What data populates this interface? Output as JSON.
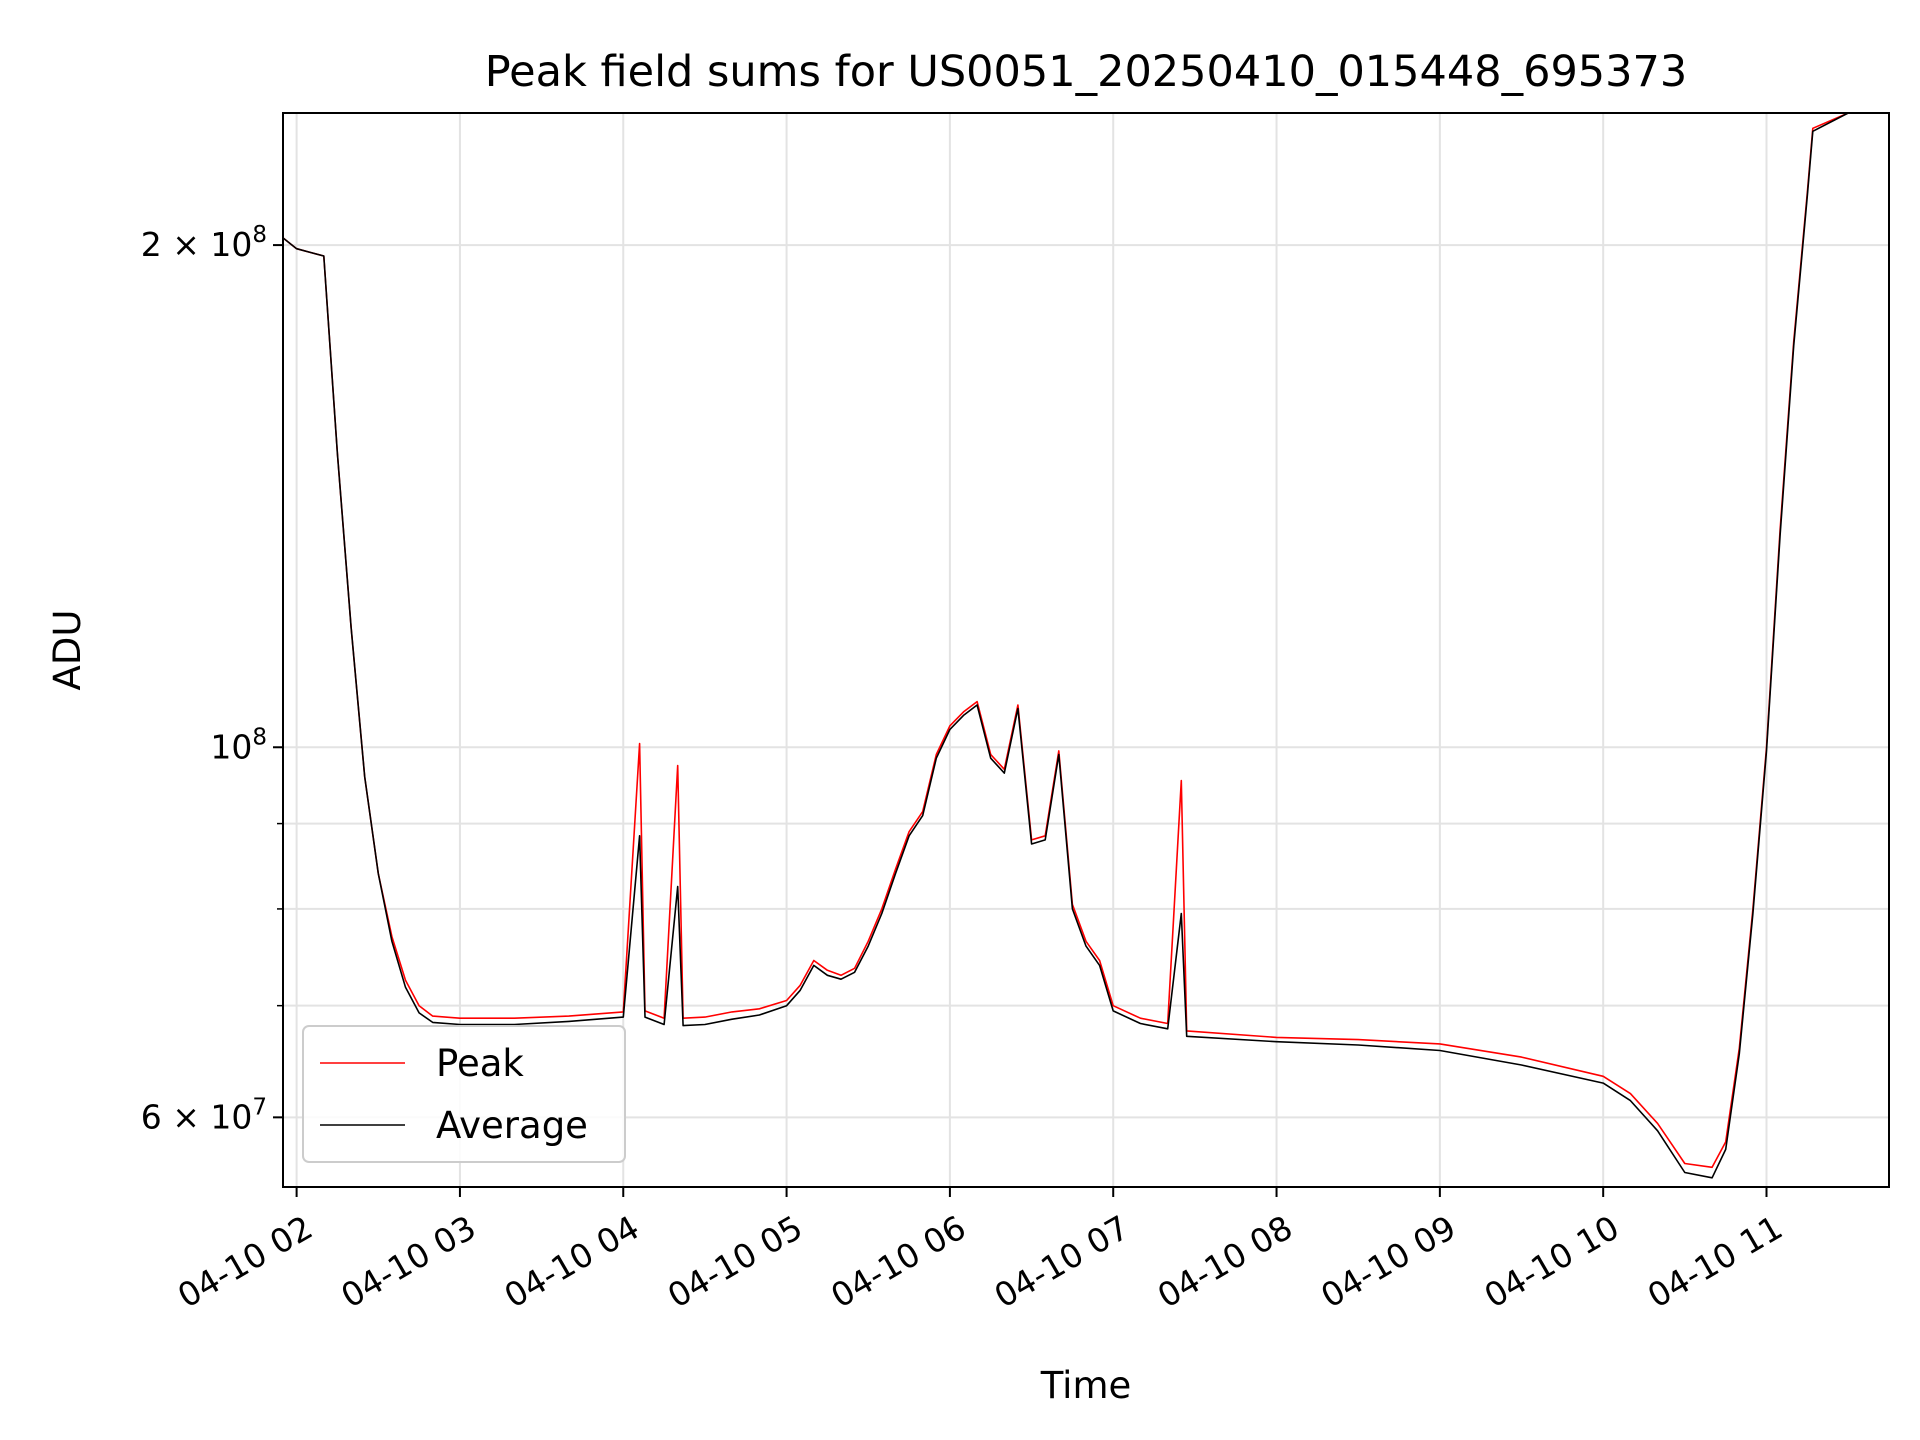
{
  "chart_data": {
    "type": "line",
    "title": "Peak field sums for US0051_20250410_015448_695373",
    "xlabel": "Time",
    "ylabel": "ADU",
    "x_axis": "datetime",
    "y_scale": "log",
    "xlim": [
      "2025-04-10T01:55:00",
      "2025-04-10T11:45:00"
    ],
    "ylim": [
      54500000,
      240000000
    ],
    "x_ticks": [
      {
        "t": "2025-04-10T02:00",
        "label": "04-10 02"
      },
      {
        "t": "2025-04-10T03:00",
        "label": "04-10 03"
      },
      {
        "t": "2025-04-10T04:00",
        "label": "04-10 04"
      },
      {
        "t": "2025-04-10T05:00",
        "label": "04-10 05"
      },
      {
        "t": "2025-04-10T06:00",
        "label": "04-10 06"
      },
      {
        "t": "2025-04-10T07:00",
        "label": "04-10 07"
      },
      {
        "t": "2025-04-10T08:00",
        "label": "04-10 08"
      },
      {
        "t": "2025-04-10T09:00",
        "label": "04-10 09"
      },
      {
        "t": "2025-04-10T10:00",
        "label": "04-10 10"
      },
      {
        "t": "2025-04-10T11:00",
        "label": "04-10 11"
      }
    ],
    "y_major_ticks": [
      {
        "v": 60000000,
        "mantissa": "6",
        "exp": "7"
      },
      {
        "v": 100000000,
        "mantissa": "",
        "exp": "8"
      },
      {
        "v": 200000000,
        "mantissa": "2",
        "exp": "8"
      }
    ],
    "y_minor_ticks": [
      70000000,
      80000000,
      90000000
    ],
    "grid": true,
    "legend_position": "lower-left",
    "series": [
      {
        "name": "Peak",
        "color": "#ff0000",
        "points": [
          [
            "2025-04-10T01:55",
            202000000
          ],
          [
            "2025-04-10T02:00",
            199000000
          ],
          [
            "2025-04-10T02:05",
            198000000
          ],
          [
            "2025-04-10T02:10",
            197000000
          ],
          [
            "2025-04-10T02:15",
            150000000
          ],
          [
            "2025-04-10T02:20",
            118000000
          ],
          [
            "2025-04-10T02:25",
            96000000
          ],
          [
            "2025-04-10T02:30",
            84000000
          ],
          [
            "2025-04-10T02:35",
            77000000
          ],
          [
            "2025-04-10T02:40",
            72500000
          ],
          [
            "2025-04-10T02:45",
            70000000
          ],
          [
            "2025-04-10T02:50",
            69000000
          ],
          [
            "2025-04-10T03:00",
            68800000
          ],
          [
            "2025-04-10T03:20",
            68800000
          ],
          [
            "2025-04-10T03:40",
            69000000
          ],
          [
            "2025-04-10T04:00",
            69400000
          ],
          [
            "2025-04-10T04:06",
            100500000
          ],
          [
            "2025-04-10T04:08",
            69500000
          ],
          [
            "2025-04-10T04:15",
            68800000
          ],
          [
            "2025-04-10T04:20",
            97500000
          ],
          [
            "2025-04-10T04:22",
            68800000
          ],
          [
            "2025-04-10T04:30",
            68900000
          ],
          [
            "2025-04-10T04:40",
            69400000
          ],
          [
            "2025-04-10T04:50",
            69700000
          ],
          [
            "2025-04-10T05:00",
            70500000
          ],
          [
            "2025-04-10T05:05",
            72000000
          ],
          [
            "2025-04-10T05:10",
            74500000
          ],
          [
            "2025-04-10T05:15",
            73500000
          ],
          [
            "2025-04-10T05:20",
            73000000
          ],
          [
            "2025-04-10T05:25",
            73700000
          ],
          [
            "2025-04-10T05:30",
            76500000
          ],
          [
            "2025-04-10T05:35",
            80000000
          ],
          [
            "2025-04-10T05:40",
            84500000
          ],
          [
            "2025-04-10T05:45",
            89000000
          ],
          [
            "2025-04-10T05:50",
            91500000
          ],
          [
            "2025-04-10T05:55",
            99000000
          ],
          [
            "2025-04-10T06:00",
            103000000
          ],
          [
            "2025-04-10T06:05",
            105000000
          ],
          [
            "2025-04-10T06:10",
            106500000
          ],
          [
            "2025-04-10T06:15",
            99000000
          ],
          [
            "2025-04-10T06:20",
            97000000
          ],
          [
            "2025-04-10T06:25",
            106000000
          ],
          [
            "2025-04-10T06:30",
            88000000
          ],
          [
            "2025-04-10T06:35",
            88500000
          ],
          [
            "2025-04-10T06:40",
            99500000
          ],
          [
            "2025-04-10T06:45",
            80500000
          ],
          [
            "2025-04-10T06:50",
            76500000
          ],
          [
            "2025-04-10T06:55",
            74500000
          ],
          [
            "2025-04-10T07:00",
            70000000
          ],
          [
            "2025-04-10T07:10",
            68800000
          ],
          [
            "2025-04-10T07:20",
            68300000
          ],
          [
            "2025-04-10T07:25",
            95500000
          ],
          [
            "2025-04-10T07:27",
            67600000
          ],
          [
            "2025-04-10T08:00",
            67000000
          ],
          [
            "2025-04-10T08:30",
            66800000
          ],
          [
            "2025-04-10T09:00",
            66400000
          ],
          [
            "2025-04-10T09:30",
            65200000
          ],
          [
            "2025-04-10T10:00",
            63500000
          ],
          [
            "2025-04-10T10:10",
            62000000
          ],
          [
            "2025-04-10T10:20",
            59500000
          ],
          [
            "2025-04-10T10:30",
            56300000
          ],
          [
            "2025-04-10T10:40",
            56000000
          ],
          [
            "2025-04-10T10:45",
            58000000
          ],
          [
            "2025-04-10T10:50",
            66000000
          ],
          [
            "2025-04-10T10:55",
            80000000
          ],
          [
            "2025-04-10T11:00",
            100000000
          ],
          [
            "2025-04-10T11:05",
            135000000
          ],
          [
            "2025-04-10T11:10",
            175000000
          ],
          [
            "2025-04-10T11:15",
            215000000
          ],
          [
            "2025-04-10T11:17",
            235000000
          ],
          [
            "2025-04-10T11:30",
            240000000
          ]
        ]
      },
      {
        "name": "Average",
        "color": "#000000",
        "points": [
          [
            "2025-04-10T01:55",
            202000000
          ],
          [
            "2025-04-10T02:00",
            199000000
          ],
          [
            "2025-04-10T02:05",
            198000000
          ],
          [
            "2025-04-10T02:10",
            197000000
          ],
          [
            "2025-04-10T02:15",
            150000000
          ],
          [
            "2025-04-10T02:20",
            118000000
          ],
          [
            "2025-04-10T02:25",
            96000000
          ],
          [
            "2025-04-10T02:30",
            84000000
          ],
          [
            "2025-04-10T02:35",
            76500000
          ],
          [
            "2025-04-10T02:40",
            71800000
          ],
          [
            "2025-04-10T02:45",
            69300000
          ],
          [
            "2025-04-10T02:50",
            68400000
          ],
          [
            "2025-04-10T03:00",
            68200000
          ],
          [
            "2025-04-10T03:20",
            68200000
          ],
          [
            "2025-04-10T03:40",
            68500000
          ],
          [
            "2025-04-10T04:00",
            68900000
          ],
          [
            "2025-04-10T04:06",
            88500000
          ],
          [
            "2025-04-10T04:08",
            68900000
          ],
          [
            "2025-04-10T04:15",
            68200000
          ],
          [
            "2025-04-10T04:20",
            82500000
          ],
          [
            "2025-04-10T04:22",
            68100000
          ],
          [
            "2025-04-10T04:30",
            68200000
          ],
          [
            "2025-04-10T04:40",
            68700000
          ],
          [
            "2025-04-10T04:50",
            69100000
          ],
          [
            "2025-04-10T05:00",
            70000000
          ],
          [
            "2025-04-10T05:05",
            71500000
          ],
          [
            "2025-04-10T05:10",
            74000000
          ],
          [
            "2025-04-10T05:15",
            73000000
          ],
          [
            "2025-04-10T05:20",
            72600000
          ],
          [
            "2025-04-10T05:25",
            73300000
          ],
          [
            "2025-04-10T05:30",
            76000000
          ],
          [
            "2025-04-10T05:35",
            79500000
          ],
          [
            "2025-04-10T05:40",
            84000000
          ],
          [
            "2025-04-10T05:45",
            88500000
          ],
          [
            "2025-04-10T05:50",
            91000000
          ],
          [
            "2025-04-10T05:55",
            98500000
          ],
          [
            "2025-04-10T06:00",
            102500000
          ],
          [
            "2025-04-10T06:05",
            104500000
          ],
          [
            "2025-04-10T06:10",
            106000000
          ],
          [
            "2025-04-10T06:15",
            98500000
          ],
          [
            "2025-04-10T06:20",
            96500000
          ],
          [
            "2025-04-10T06:25",
            105500000
          ],
          [
            "2025-04-10T06:30",
            87500000
          ],
          [
            "2025-04-10T06:35",
            88000000
          ],
          [
            "2025-04-10T06:40",
            99000000
          ],
          [
            "2025-04-10T06:45",
            80000000
          ],
          [
            "2025-04-10T06:50",
            76000000
          ],
          [
            "2025-04-10T06:55",
            74000000
          ],
          [
            "2025-04-10T07:00",
            69500000
          ],
          [
            "2025-04-10T07:10",
            68300000
          ],
          [
            "2025-04-10T07:20",
            67800000
          ],
          [
            "2025-04-10T07:25",
            79500000
          ],
          [
            "2025-04-10T07:27",
            67100000
          ],
          [
            "2025-04-10T08:00",
            66600000
          ],
          [
            "2025-04-10T08:30",
            66300000
          ],
          [
            "2025-04-10T09:00",
            65800000
          ],
          [
            "2025-04-10T09:30",
            64500000
          ],
          [
            "2025-04-10T10:00",
            62900000
          ],
          [
            "2025-04-10T10:10",
            61400000
          ],
          [
            "2025-04-10T10:20",
            58900000
          ],
          [
            "2025-04-10T10:30",
            55600000
          ],
          [
            "2025-04-10T10:40",
            55200000
          ],
          [
            "2025-04-10T10:45",
            57400000
          ],
          [
            "2025-04-10T10:50",
            65500000
          ],
          [
            "2025-04-10T10:55",
            79500000
          ],
          [
            "2025-04-10T11:00",
            99500000
          ],
          [
            "2025-04-10T11:05",
            134000000
          ],
          [
            "2025-04-10T11:10",
            174000000
          ],
          [
            "2025-04-10T11:15",
            214000000
          ],
          [
            "2025-04-10T11:17",
            234000000
          ],
          [
            "2025-04-10T11:30",
            240000000
          ]
        ]
      }
    ]
  }
}
